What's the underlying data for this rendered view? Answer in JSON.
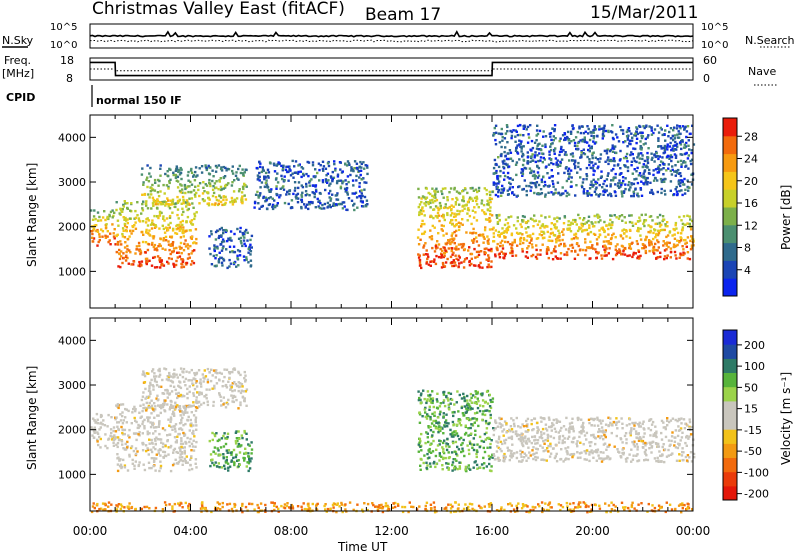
{
  "header": {
    "title": "Christmas Valley East (fitACF)",
    "beam": "Beam 17",
    "date": "15/Mar/2011"
  },
  "top_panels": {
    "nsky_label": "N.Sky",
    "nsky_ticks": [
      "10^5",
      "10^0"
    ],
    "nsearch_label": "N.Search",
    "nsearch_ticks": [
      "10^5",
      "10^0"
    ],
    "freq_label": "Freq.",
    "freq_unit": "[MHz]",
    "freq_ticks": [
      "18",
      "8"
    ],
    "nave_label": "Nave",
    "nave_ticks": [
      "60",
      "0"
    ],
    "cpid_label": "CPID",
    "cpid_value": "normal 150 IF"
  },
  "axes": {
    "y_label": "Slant Range [km]",
    "y_ticks": [
      "1000",
      "2000",
      "3000",
      "4000"
    ],
    "x_label": "Time UT",
    "x_ticks": [
      "00:00",
      "04:00",
      "08:00",
      "12:00",
      "16:00",
      "20:00",
      "00:00"
    ]
  },
  "colorbars": {
    "power": {
      "label": "Power [dB]",
      "ticks": [
        "4",
        "8",
        "12",
        "16",
        "20",
        "24",
        "28"
      ],
      "colors": [
        "#0b24ee",
        "#1b45b5",
        "#2f6a8c",
        "#4b8f70",
        "#7cb04a",
        "#c7d02a",
        "#f5c518",
        "#f79a10",
        "#f26a0c",
        "#ea1d0a"
      ]
    },
    "velocity": {
      "label": "Velocity [m s⁻¹]",
      "ticks": [
        "200",
        "100",
        "50",
        "15",
        "-15",
        "-50",
        "-100",
        "-200"
      ],
      "colors": [
        "#1a2bd6",
        "#1f4aa3",
        "#2e7a66",
        "#57b43b",
        "#9bd34a",
        "#c9c6bd",
        "#c9c6bd",
        "#f2c21a",
        "#f39a12",
        "#f26a0d",
        "#ea3b0a",
        "#e41709"
      ]
    }
  },
  "chart_data": [
    {
      "type": "line",
      "title": "N.Sky / N.Search",
      "x": [
        "00:00",
        "04:00",
        "08:00",
        "12:00",
        "16:00",
        "20:00",
        "00:00"
      ],
      "y_scale": "log",
      "ylim": [
        1,
        100000
      ],
      "series": [
        {
          "name": "N.Sky",
          "values": [
            316,
            316,
            316,
            316,
            316,
            316,
            316
          ]
        },
        {
          "name": "N.Search",
          "values": [
            31,
            31,
            31,
            31,
            31,
            31,
            31
          ]
        }
      ]
    },
    {
      "type": "line",
      "title": "Freq. / Nave",
      "x": [
        "00:00",
        "01:00",
        "01:01",
        "16:00",
        "16:01",
        "24:00"
      ],
      "series": [
        {
          "name": "Freq.",
          "values": [
            16,
            16,
            10,
            10,
            16,
            16
          ],
          "ylim": [
            8,
            18
          ]
        },
        {
          "name": "Nave",
          "values": [
            30,
            30,
            25,
            25,
            30,
            30
          ],
          "ylim": [
            0,
            60
          ]
        }
      ]
    },
    {
      "type": "heatmap",
      "title": "Power [dB]",
      "xlabel": "Time UT",
      "ylabel": "Slant Range [km]",
      "xlim": [
        "00:00",
        "24:00"
      ],
      "ylim": [
        180,
        4500
      ],
      "zlim": [
        0,
        30
      ],
      "features": [
        {
          "t": [
            0.0,
            1.0
          ],
          "range": [
            1600,
            2400
          ],
          "level": "high"
        },
        {
          "t": [
            1.0,
            4.2
          ],
          "range": [
            1100,
            2600
          ],
          "level": "high"
        },
        {
          "t": [
            2.0,
            6.2
          ],
          "range": [
            2500,
            3400
          ],
          "level": "medium"
        },
        {
          "t": [
            4.7,
            6.4
          ],
          "range": [
            1100,
            2000
          ],
          "level": "low"
        },
        {
          "t": [
            6.5,
            11.0
          ],
          "range": [
            2400,
            3500
          ],
          "level": "low"
        },
        {
          "t": [
            13.0,
            16.0
          ],
          "range": [
            1100,
            2900
          ],
          "level": "high"
        },
        {
          "t": [
            16.0,
            24.0
          ],
          "range": [
            1300,
            2300
          ],
          "level": "high"
        },
        {
          "t": [
            16.0,
            24.0
          ],
          "range": [
            2700,
            4300
          ],
          "level": "low"
        }
      ]
    },
    {
      "type": "heatmap",
      "title": "Velocity [m s⁻¹]",
      "xlabel": "Time UT",
      "ylabel": "Slant Range [km]",
      "xlim": [
        "00:00",
        "24:00"
      ],
      "ylim": [
        180,
        4500
      ],
      "zlim": [
        -200,
        200
      ],
      "features": [
        {
          "t": [
            0.0,
            1.0
          ],
          "range": [
            1600,
            2400
          ],
          "level": "ground scatter"
        },
        {
          "t": [
            1.0,
            4.2
          ],
          "range": [
            1100,
            2600
          ],
          "level": "ground scatter"
        },
        {
          "t": [
            2.0,
            6.2
          ],
          "range": [
            2500,
            3400
          ],
          "level": "ground scatter"
        },
        {
          "t": [
            4.7,
            6.4
          ],
          "range": [
            1100,
            2000
          ],
          "level": "positive"
        },
        {
          "t": [
            13.0,
            16.0
          ],
          "range": [
            1100,
            2900
          ],
          "level": "positive"
        },
        {
          "t": [
            16.0,
            24.0
          ],
          "range": [
            1300,
            2300
          ],
          "level": "ground scatter"
        },
        {
          "t": [
            0.0,
            24.0
          ],
          "range": [
            180,
            400
          ],
          "level": "negative"
        }
      ]
    }
  ]
}
